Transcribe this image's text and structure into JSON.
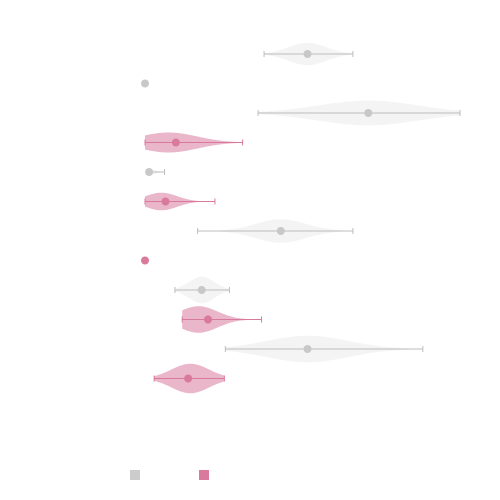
{
  "chart_data": {
    "type": "violin",
    "orientation": "horizontal",
    "title": "",
    "xlabel": "",
    "ylabel": "",
    "xlim": [
      0,
      100
    ],
    "grid": false,
    "legend": {
      "placement": "bottom-left",
      "entries": [
        {
          "color": "#cccccc"
        },
        {
          "color": "#d97a9d"
        }
      ]
    },
    "colors": {
      "grey": "#cccccc",
      "pink": "#d97a9d"
    },
    "rows": [
      {
        "group": 0,
        "median": 51.6,
        "min": 37.8,
        "max": 66.0,
        "spread": 6.0,
        "max_width": 0.38,
        "mid": 51.6
      },
      {
        "group": 0,
        "median": 0.0,
        "min": 0.0,
        "max": 0.0,
        "spread": 0.0,
        "max_width": 0.0,
        "mid": 0.0
      },
      {
        "group": 0,
        "median": 70.9,
        "min": 35.9,
        "max": 100.0,
        "spread": 16.0,
        "max_width": 0.42,
        "mid": 70.9
      },
      {
        "group": 1,
        "median": 9.8,
        "min": 0.0,
        "max": 31.0,
        "spread": 9.0,
        "max_width": 0.34,
        "mid": 7.5
      },
      {
        "group": 0,
        "median": 1.3,
        "min": 0.5,
        "max": 6.2,
        "spread": 2.0,
        "max_width": 0.1,
        "mid": 1.3
      },
      {
        "group": 1,
        "median": 6.5,
        "min": 0.0,
        "max": 22.2,
        "spread": 5.0,
        "max_width": 0.3,
        "mid": 5.2
      },
      {
        "group": 0,
        "median": 43.1,
        "min": 16.7,
        "max": 66.0,
        "spread": 8.0,
        "max_width": 0.4,
        "mid": 43.1
      },
      {
        "group": 1,
        "median": 0.0,
        "min": 0.0,
        "max": 0.0,
        "spread": 0.0,
        "max_width": 0.12,
        "mid": 0.0
      },
      {
        "group": 0,
        "median": 18.0,
        "min": 9.5,
        "max": 26.8,
        "spread": 4.0,
        "max_width": 0.45,
        "mid": 18.0
      },
      {
        "group": 1,
        "median": 20.0,
        "min": 11.8,
        "max": 37.0,
        "spread": 6.0,
        "max_width": 0.45,
        "mid": 17.0
      },
      {
        "group": 0,
        "median": 51.6,
        "min": 25.5,
        "max": 88.2,
        "spread": 13.0,
        "max_width": 0.45,
        "mid": 51.6
      },
      {
        "group": 1,
        "median": 13.7,
        "min": 2.9,
        "max": 25.2,
        "spread": 6.0,
        "max_width": 0.5,
        "mid": 14.4
      }
    ]
  }
}
